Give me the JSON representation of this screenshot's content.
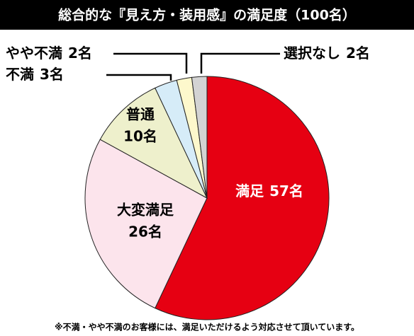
{
  "chart_data": {
    "type": "pie",
    "title": "総合的な『見え方・装用感』の満足度（100名）",
    "categories": [
      "満足",
      "大変満足",
      "普通",
      "不満",
      "やや不満",
      "選択なし"
    ],
    "values": [
      57,
      26,
      10,
      3,
      2,
      2
    ],
    "value_labels": [
      "57名",
      "26名",
      "10名",
      "3名",
      "2名",
      "2名"
    ],
    "colors": [
      "#e60012",
      "#fce4ec",
      "#eef0cc",
      "#d6ecf8",
      "#fdf8cc",
      "#d3d3d3"
    ],
    "note": "※不満・やや不満のお客様には、満足いただけるよう対応させて頂いています。"
  }
}
